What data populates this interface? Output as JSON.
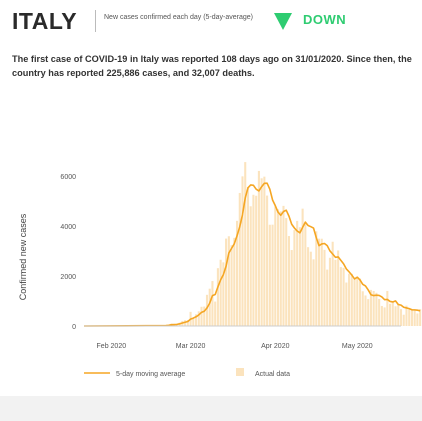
{
  "header": {
    "country": "ITALY",
    "subtitle": "New cases confirmed each day (5-day-average)",
    "trend": "DOWN",
    "trend_color": "#2ecc71"
  },
  "summary": "The first case of COVID-19 in Italy was reported 108 days ago on 31/01/2020. Since then, the country has reported 225,886 cases, and 32,007 deaths.",
  "colors": {
    "line": "#f5a623",
    "bar": "#fbe3bd",
    "axis_text": "#555555"
  },
  "chart_data": {
    "type": "bar",
    "title": "",
    "ylabel": "Confirmed new cases",
    "xlabel": "",
    "ylim": [
      0,
      6800
    ],
    "yticks": [
      0,
      2000,
      4000,
      6000
    ],
    "xticks": [
      {
        "date": "2020-02-01",
        "label": "Feb 2020"
      },
      {
        "date": "2020-03-01",
        "label": "Mar 2020"
      },
      {
        "date": "2020-04-01",
        "label": "Apr 2020"
      },
      {
        "date": "2020-05-01",
        "label": "May 2020"
      }
    ],
    "x_start": "2020-01-22",
    "x_end": "2020-05-17",
    "grid": false,
    "legend_position": "bottom",
    "series": [
      {
        "name": "Actual data",
        "kind": "bar",
        "start_date": "2020-02-21",
        "values": [
          17,
          42,
          93,
          74,
          93,
          131,
          202,
          233,
          240,
          566,
          342,
          466,
          587,
          769,
          778,
          1247,
          1492,
          1797,
          977,
          2313,
          2651,
          2547,
          3497,
          3590,
          3233,
          3526,
          4207,
          5322,
          5986,
          6557,
          5560,
          4789,
          5249,
          5210,
          6203,
          5909,
          5974,
          5217,
          4050,
          4053,
          4782,
          4668,
          4585,
          4805,
          4316,
          3599,
          3039,
          3836,
          4204,
          3951,
          4694,
          4092,
          3153,
          2972,
          2667,
          3786,
          3493,
          3491,
          3047,
          2256,
          2729,
          3370,
          2646,
          3021,
          2357,
          2324,
          1739,
          2091,
          2086,
          1872,
          1965,
          1900,
          1389,
          1221,
          1075,
          1444,
          1401,
          1327,
          1083,
          802,
          744,
          1402,
          888,
          992,
          789,
          875,
          675,
          451,
          813,
          665,
          642,
          652,
          502,
          675
        ]
      },
      {
        "name": "5-day moving average",
        "kind": "line",
        "start_date": "2020-02-21",
        "values": [
          17,
          30,
          51,
          57,
          64,
          87,
          119,
          151,
          180,
          274,
          317,
          369,
          441,
          546,
          588,
          721,
          915,
          1217,
          1258,
          1565,
          1846,
          2057,
          2397,
          2920,
          3104,
          3289,
          3611,
          3976,
          4453,
          5120,
          5526,
          5643,
          5628,
          5471,
          5402,
          5572,
          5709,
          5713,
          5471,
          5041,
          4815,
          4554,
          4428,
          4579,
          4631,
          4395,
          4069,
          3919,
          3799,
          3726,
          3945,
          4155,
          4019,
          3973,
          3916,
          3534,
          3214,
          3282,
          3301,
          3215,
          3003,
          2879,
          2749,
          2763,
          2625,
          2486,
          2283,
          2166,
          2039,
          1884,
          1951,
          1843,
          1669,
          1602,
          1442,
          1252,
          1216,
          1232,
          1224,
          1163,
          1051,
          1062,
          982,
          962,
          1004,
          861,
          836,
          750,
          722,
          696,
          649,
          645,
          632,
          609
        ]
      }
    ]
  }
}
